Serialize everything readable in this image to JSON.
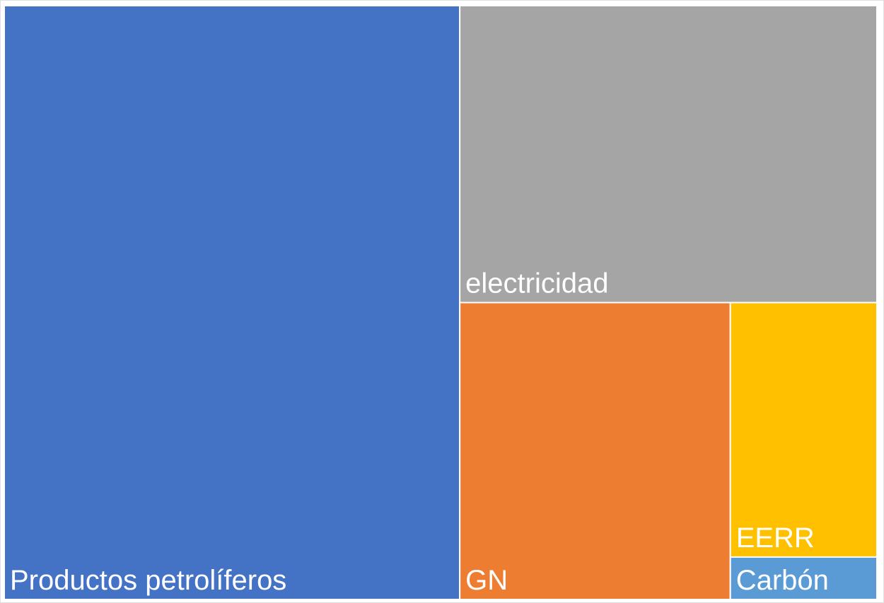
{
  "chart_data": {
    "type": "treemap",
    "categories": [
      "Productos petrolíferos",
      "electricidad",
      "GN",
      "EERR",
      "Carbón"
    ],
    "values": [
      52.2,
      23.9,
      15.5,
      7.2,
      1.2
    ],
    "colors": [
      "#4472c4",
      "#a5a5a5",
      "#ed7d31",
      "#ffc000",
      "#5b9bd5"
    ]
  }
}
